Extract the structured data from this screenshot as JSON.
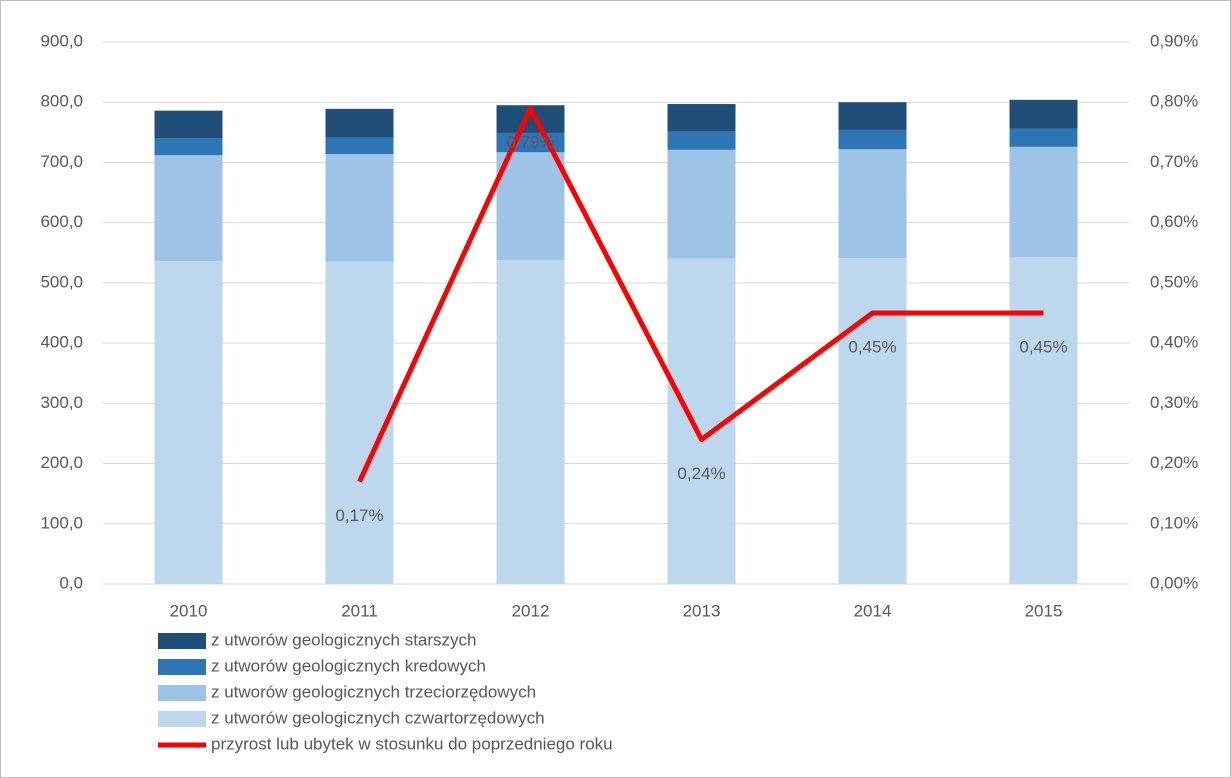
{
  "chart_data": {
    "type": "bar+line",
    "categories": [
      "2010",
      "2011",
      "2012",
      "2013",
      "2014",
      "2015"
    ],
    "series": [
      {
        "name": "z utworów geologicznych czwartorzędowych",
        "color": "#bdd7ee",
        "values": [
          536,
          535,
          538,
          540,
          541,
          543
        ]
      },
      {
        "name": "z utworów geologicznych trzeciorzędowych",
        "color": "#9dc3e6",
        "values": [
          176,
          179,
          179,
          181,
          181,
          183
        ]
      },
      {
        "name": "z utworów geologicznych kredowych",
        "color": "#2e75b6",
        "values": [
          28,
          27,
          32,
          30,
          32,
          30
        ]
      },
      {
        "name": "z utworów geologicznych starszych",
        "color": "#1f4e79",
        "values": [
          46,
          48,
          46,
          46,
          46,
          48
        ]
      },
      {
        "name": "przyrost lub ubytek w stosunku do poprzedniego roku",
        "color": "#ff0000",
        "type": "line",
        "axis": "y2",
        "values": [
          null,
          0.17,
          0.79,
          0.24,
          0.45,
          0.45
        ],
        "value_labels": [
          null,
          "0,17%",
          "0,79%",
          "0,24%",
          "0,45%",
          "0,45%"
        ]
      }
    ],
    "ylim": [
      0,
      900
    ],
    "yticks": [
      {
        "value": 0,
        "label": "0,0"
      },
      {
        "value": 100,
        "label": "100,0"
      },
      {
        "value": 200,
        "label": "200,0"
      },
      {
        "value": 300,
        "label": "300,0"
      },
      {
        "value": 400,
        "label": "400,0"
      },
      {
        "value": 500,
        "label": "500,0"
      },
      {
        "value": 600,
        "label": "600,0"
      },
      {
        "value": 700,
        "label": "700,0"
      },
      {
        "value": 800,
        "label": "800,0"
      },
      {
        "value": 900,
        "label": "900,0"
      }
    ],
    "y2lim": [
      0,
      0.9
    ],
    "y2ticks": [
      {
        "value": 0,
        "label": "0,00%"
      },
      {
        "value": 0.1,
        "label": "0,10%"
      },
      {
        "value": 0.2,
        "label": "0,20%"
      },
      {
        "value": 0.3,
        "label": "0,30%"
      },
      {
        "value": 0.4,
        "label": "0,40%"
      },
      {
        "value": 0.5,
        "label": "0,50%"
      },
      {
        "value": 0.6,
        "label": "0,60%"
      },
      {
        "value": 0.7,
        "label": "0,70%"
      },
      {
        "value": 0.8,
        "label": "0,80%"
      },
      {
        "value": 0.9,
        "label": "0,90%"
      }
    ],
    "grid": true,
    "legend": "bottom"
  }
}
